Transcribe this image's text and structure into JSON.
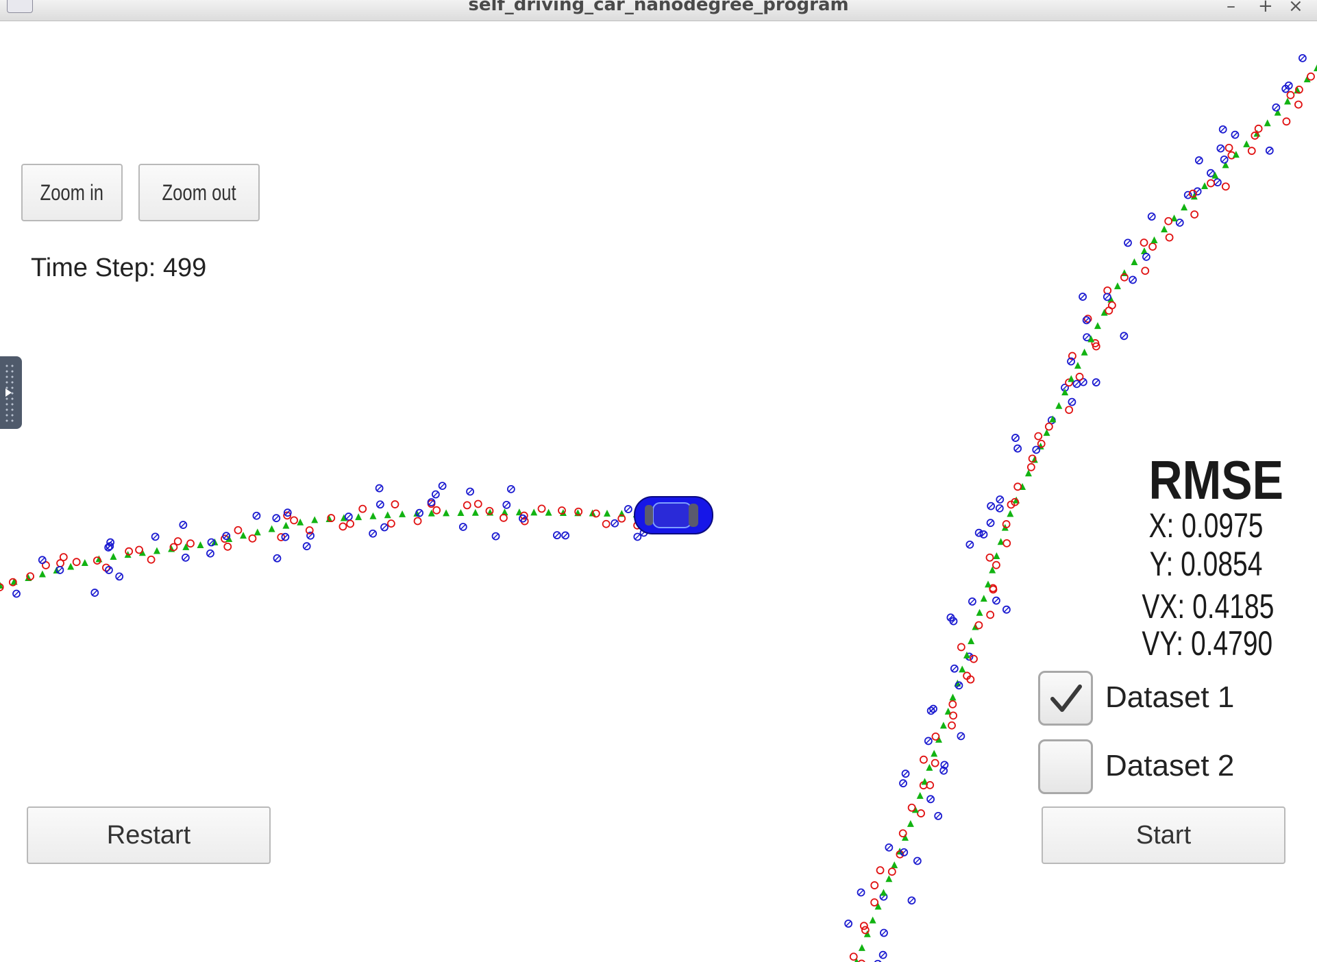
{
  "window": {
    "title": "self_driving_car_nanodegree_program",
    "minimize": "–",
    "maximize": "+",
    "close": "×"
  },
  "controls": {
    "zoom_in": "Zoom in",
    "zoom_out": "Zoom out",
    "restart": "Restart",
    "start": "Start"
  },
  "status": {
    "time_step": "Time Step: 499"
  },
  "rmse": {
    "title": "RMSE",
    "x": "X: 0.0975",
    "y": "Y: 0.0854",
    "vx": "VX: 0.4185",
    "vy": "VY: 0.4790"
  },
  "datasets": [
    {
      "label": "Dataset 1",
      "checked": true
    },
    {
      "label": "Dataset 2",
      "checked": false
    }
  ],
  "colors": {
    "radar": "#1a1ad0",
    "lidar": "#e01010",
    "estimate": "#12b312",
    "car": "#1616e8"
  }
}
